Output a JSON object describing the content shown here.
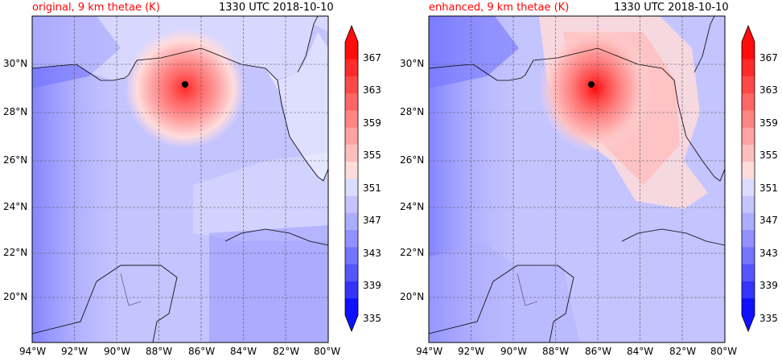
{
  "panels": [
    {
      "title": "original, 9 km thetae (K)",
      "timestamp": "1330 UTC 2018-10-10",
      "storm_center": {
        "lon": -86.9,
        "lat": 29.1
      }
    },
    {
      "title": "enhanced, 9 km thetae (K)",
      "timestamp": "1330 UTC 2018-10-10",
      "storm_center": {
        "lon": -86.2,
        "lat": 29.1
      }
    }
  ],
  "axes": {
    "lon_range": [
      -94,
      -80
    ],
    "lat_range": [
      18,
      32
    ],
    "x_ticks": [
      "94°W",
      "92°W",
      "90°W",
      "88°W",
      "86°W",
      "84°W",
      "82°W",
      "80°W"
    ],
    "y_ticks": [
      "20°N",
      "22°N",
      "24°N",
      "26°N",
      "28°N",
      "30°N"
    ]
  },
  "colorbar": {
    "levels": [
      "367",
      "363",
      "359",
      "355",
      "351",
      "347",
      "343",
      "339",
      "335"
    ],
    "range": [
      335,
      369
    ],
    "colors": [
      "#1010ff",
      "#3434ff",
      "#5656ff",
      "#7474ff",
      "#9191ff",
      "#adadff",
      "#c4c4ff",
      "#dcdcff",
      "#ffdcdc",
      "#ffbebe",
      "#ffa2a2",
      "#ff8484",
      "#ff6666",
      "#ff4848",
      "#ff2a2a",
      "#ff0c0c"
    ]
  },
  "colors": {
    "title_accent": "#ff0000",
    "land": "#ffffff",
    "background_field": "#c4c4ff"
  }
}
